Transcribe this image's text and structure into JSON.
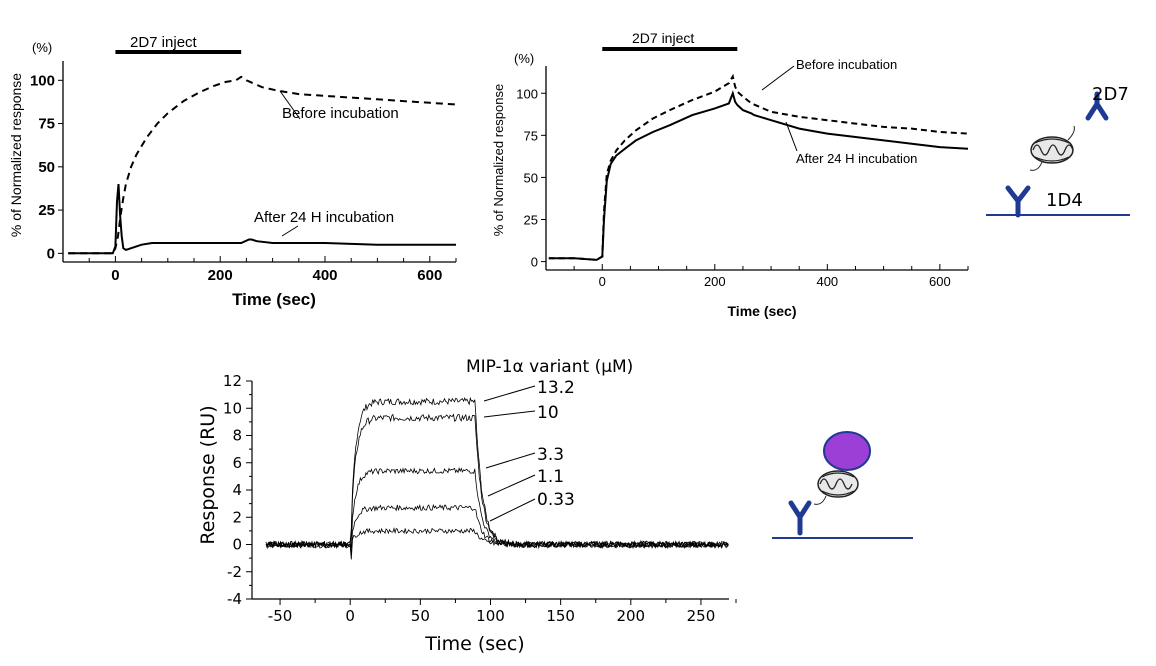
{
  "chart_data": [
    {
      "type": "line",
      "title": "",
      "unit_label": "(%)",
      "xlabel": "Time (sec)",
      "ylabel": "% of Normalized response",
      "xlim": [
        -100,
        650
      ],
      "ylim": [
        -5,
        110
      ],
      "x_ticks": [
        0,
        200,
        400,
        600
      ],
      "y_ticks": [
        0,
        25,
        50,
        75,
        100
      ],
      "x_tick_labels": [
        "0",
        "200",
        "400",
        "600"
      ],
      "y_tick_labels": [
        "0",
        "25",
        "50",
        "75",
        "100"
      ],
      "injection": {
        "label": "2D7 inject",
        "start": 0,
        "end": 240
      },
      "series": [
        {
          "name": "Before incubation",
          "style": "dashed",
          "x": [
            -90,
            -40,
            -5,
            0,
            5,
            10,
            15,
            20,
            30,
            40,
            60,
            80,
            100,
            130,
            160,
            190,
            210,
            230,
            240,
            250,
            265,
            280,
            310,
            350,
            400,
            450,
            500,
            550,
            600,
            650
          ],
          "y": [
            0,
            0,
            0,
            3,
            10,
            22,
            32,
            40,
            50,
            57,
            67,
            75,
            81,
            88,
            93,
            97,
            99,
            100,
            102,
            100,
            98,
            96,
            94,
            92,
            91,
            90,
            89,
            88,
            87,
            86
          ]
        },
        {
          "name": "After 24 H incubation",
          "style": "solid",
          "x": [
            -90,
            -40,
            -5,
            0,
            3,
            6,
            9,
            12,
            15,
            20,
            30,
            50,
            70,
            100,
            150,
            200,
            240,
            255,
            260,
            270,
            300,
            400,
            500,
            600,
            650
          ],
          "y": [
            0,
            0,
            0,
            4,
            30,
            40,
            22,
            10,
            3,
            2,
            3,
            5,
            6,
            6,
            6,
            6,
            6,
            8,
            8,
            7,
            6,
            6,
            5,
            5,
            5
          ]
        }
      ]
    },
    {
      "type": "line",
      "title": "",
      "unit_label": "(%)",
      "xlabel": "Time (sec)",
      "ylabel": "% of Normalized response",
      "xlim": [
        -100,
        650
      ],
      "ylim": [
        -5,
        115
      ],
      "x_ticks": [
        0,
        200,
        400,
        600
      ],
      "y_ticks": [
        0,
        25,
        50,
        75,
        100
      ],
      "x_tick_labels": [
        "0",
        "200",
        "400",
        "600"
      ],
      "y_tick_labels": [
        "0",
        "25",
        "50",
        "75",
        "100"
      ],
      "injection": {
        "label": "2D7 inject",
        "start": 0,
        "end": 240
      },
      "series": [
        {
          "name": "Before incubation",
          "style": "dashed",
          "x": [
            -95,
            -50,
            -10,
            0,
            3,
            8,
            15,
            25,
            40,
            60,
            90,
            120,
            160,
            200,
            225,
            232,
            236,
            240,
            250,
            265,
            300,
            350,
            400,
            450,
            500,
            550,
            600,
            650
          ],
          "y": [
            2,
            2,
            1,
            3,
            30,
            52,
            60,
            66,
            72,
            78,
            85,
            90,
            96,
            101,
            106,
            110,
            104,
            101,
            98,
            94,
            89,
            86,
            84,
            82,
            80,
            79,
            77,
            76
          ]
        },
        {
          "name": "After 24 H incubation",
          "style": "solid",
          "x": [
            -95,
            -50,
            -10,
            0,
            3,
            8,
            15,
            25,
            40,
            60,
            90,
            120,
            160,
            200,
            225,
            232,
            236,
            240,
            250,
            265,
            270,
            300,
            350,
            400,
            450,
            500,
            550,
            600,
            650
          ],
          "y": [
            2,
            2,
            1,
            3,
            25,
            48,
            58,
            63,
            67,
            72,
            77,
            81,
            87,
            91,
            94,
            100,
            95,
            93,
            90,
            88,
            87,
            84,
            79,
            76,
            74,
            72,
            70,
            68,
            67
          ]
        }
      ]
    },
    {
      "type": "line",
      "title": "MIP-1α variant (μM)",
      "xlabel": "Time (sec)",
      "ylabel": "Response (RU)",
      "xlim": [
        -70,
        270
      ],
      "ylim": [
        -4,
        12
      ],
      "x_ticks": [
        -50,
        0,
        50,
        100,
        150,
        200,
        250
      ],
      "y_ticks": [
        -4,
        -2,
        0,
        2,
        4,
        6,
        8,
        10,
        12
      ],
      "x_tick_labels": [
        "-50",
        "0",
        "50",
        "100",
        "150",
        "200",
        "250"
      ],
      "y_tick_labels": [
        "-4",
        "-2",
        "0",
        "2",
        "4",
        "6",
        "8",
        "10",
        "12"
      ],
      "concentrations": [
        "13.2",
        "10",
        "3.3",
        "1.1",
        "0.33"
      ],
      "series": [
        {
          "name": "13.2",
          "plateau": 10.5,
          "noise": 0.25
        },
        {
          "name": "10",
          "plateau": 9.3,
          "noise": 0.25
        },
        {
          "name": "3.3",
          "plateau": 5.4,
          "noise": 0.2
        },
        {
          "name": "1.1",
          "plateau": 2.7,
          "noise": 0.2
        },
        {
          "name": "0.33",
          "plateau": 1.0,
          "noise": 0.18
        }
      ]
    }
  ],
  "schematics": {
    "top_right": {
      "label_top": "2D7",
      "label_bottom": "1D4"
    },
    "bottom": {}
  }
}
